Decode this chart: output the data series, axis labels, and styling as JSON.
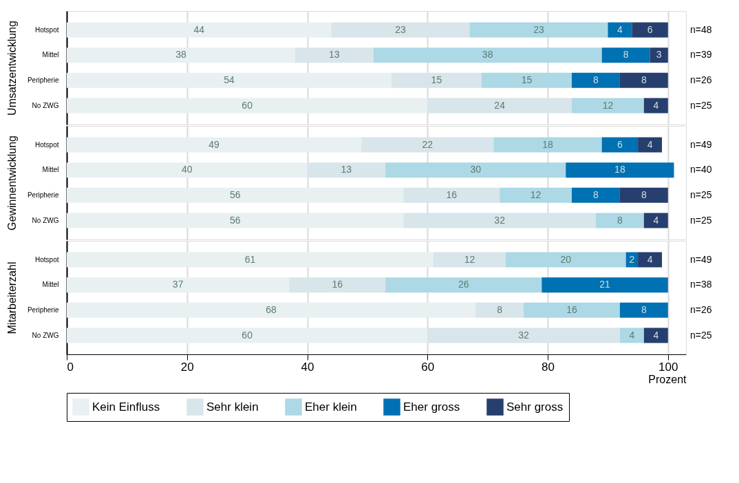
{
  "chart_data": [
    {
      "type": "bar",
      "orientation": "horizontal",
      "stacked": true,
      "ylabel": "Umsatzentwicklung",
      "categories": [
        "Hotspot",
        "Mittel",
        "Peripherie",
        "No ZWG"
      ],
      "series": [
        {
          "color": "#e8f0f2",
          "values": [
            44,
            38,
            54,
            60
          ]
        },
        {
          "color": "#d8e5ea",
          "values": [
            23,
            13,
            15,
            24
          ]
        },
        {
          "color": "#add8e5",
          "values": [
            23,
            38,
            15,
            12
          ]
        },
        {
          "color": "#0071b2",
          "values": [
            4,
            8,
            8,
            null
          ]
        },
        {
          "color": "#263f6f",
          "values": [
            6,
            3,
            8,
            4
          ]
        }
      ],
      "xlim": [
        0,
        103
      ],
      "xticks": [
        0,
        20,
        40,
        60,
        80,
        100
      ],
      "grid": "x",
      "tick_labels": "y",
      "data_labels": true,
      "annotations": [
        "n=48",
        "n=39",
        "n=26",
        "n=25"
      ]
    },
    {
      "type": "bar",
      "orientation": "horizontal",
      "stacked": true,
      "ylabel": "Gewinnentwicklung",
      "categories": [
        "Hotspot",
        "Mittel",
        "Peripherie",
        "No ZWG"
      ],
      "series": [
        {
          "color": "#e8f0f2",
          "values": [
            49,
            40,
            56,
            56
          ]
        },
        {
          "color": "#d8e5ea",
          "values": [
            22,
            13,
            16,
            32
          ]
        },
        {
          "color": "#add8e5",
          "values": [
            18,
            30,
            12,
            8
          ]
        },
        {
          "color": "#0071b2",
          "values": [
            6,
            18,
            8,
            null
          ]
        },
        {
          "color": "#263f6f",
          "values": [
            4,
            null,
            8,
            4
          ]
        }
      ],
      "xlim": [
        0,
        103
      ],
      "xticks": [
        0,
        20,
        40,
        60,
        80,
        100
      ],
      "grid": "x",
      "tick_labels": "y",
      "data_labels": true,
      "annotations": [
        "n=49",
        "n=40",
        "n=25",
        "n=25"
      ]
    },
    {
      "type": "bar",
      "orientation": "horizontal",
      "stacked": true,
      "ylabel": "Mitarbeiterzahl",
      "xlabel": "Prozent",
      "categories": [
        "Hotspot",
        "Mittel",
        "Peripherie",
        "No ZWG"
      ],
      "series": [
        {
          "name": "Kein Einfluss",
          "color": "#e8f0f2",
          "values": [
            61,
            37,
            68,
            60
          ]
        },
        {
          "name": "Sehr klein",
          "color": "#d8e5ea",
          "values": [
            12,
            16,
            8,
            32
          ]
        },
        {
          "name": "Eher klein",
          "color": "#add8e5",
          "values": [
            20,
            26,
            16,
            4
          ]
        },
        {
          "name": "Eher gross",
          "color": "#0071b2",
          "values": [
            2,
            21,
            8,
            null
          ]
        },
        {
          "name": "Sehr gross",
          "color": "#263f6f",
          "values": [
            4,
            null,
            null,
            4
          ]
        }
      ],
      "xlim": [
        0,
        103
      ],
      "xticks": [
        0,
        20,
        40,
        60,
        80,
        100
      ],
      "grid": "x",
      "data_labels": true,
      "legend": "bottom",
      "annotations": [
        "n=49",
        "n=38",
        "n=26",
        "n=25"
      ]
    }
  ]
}
